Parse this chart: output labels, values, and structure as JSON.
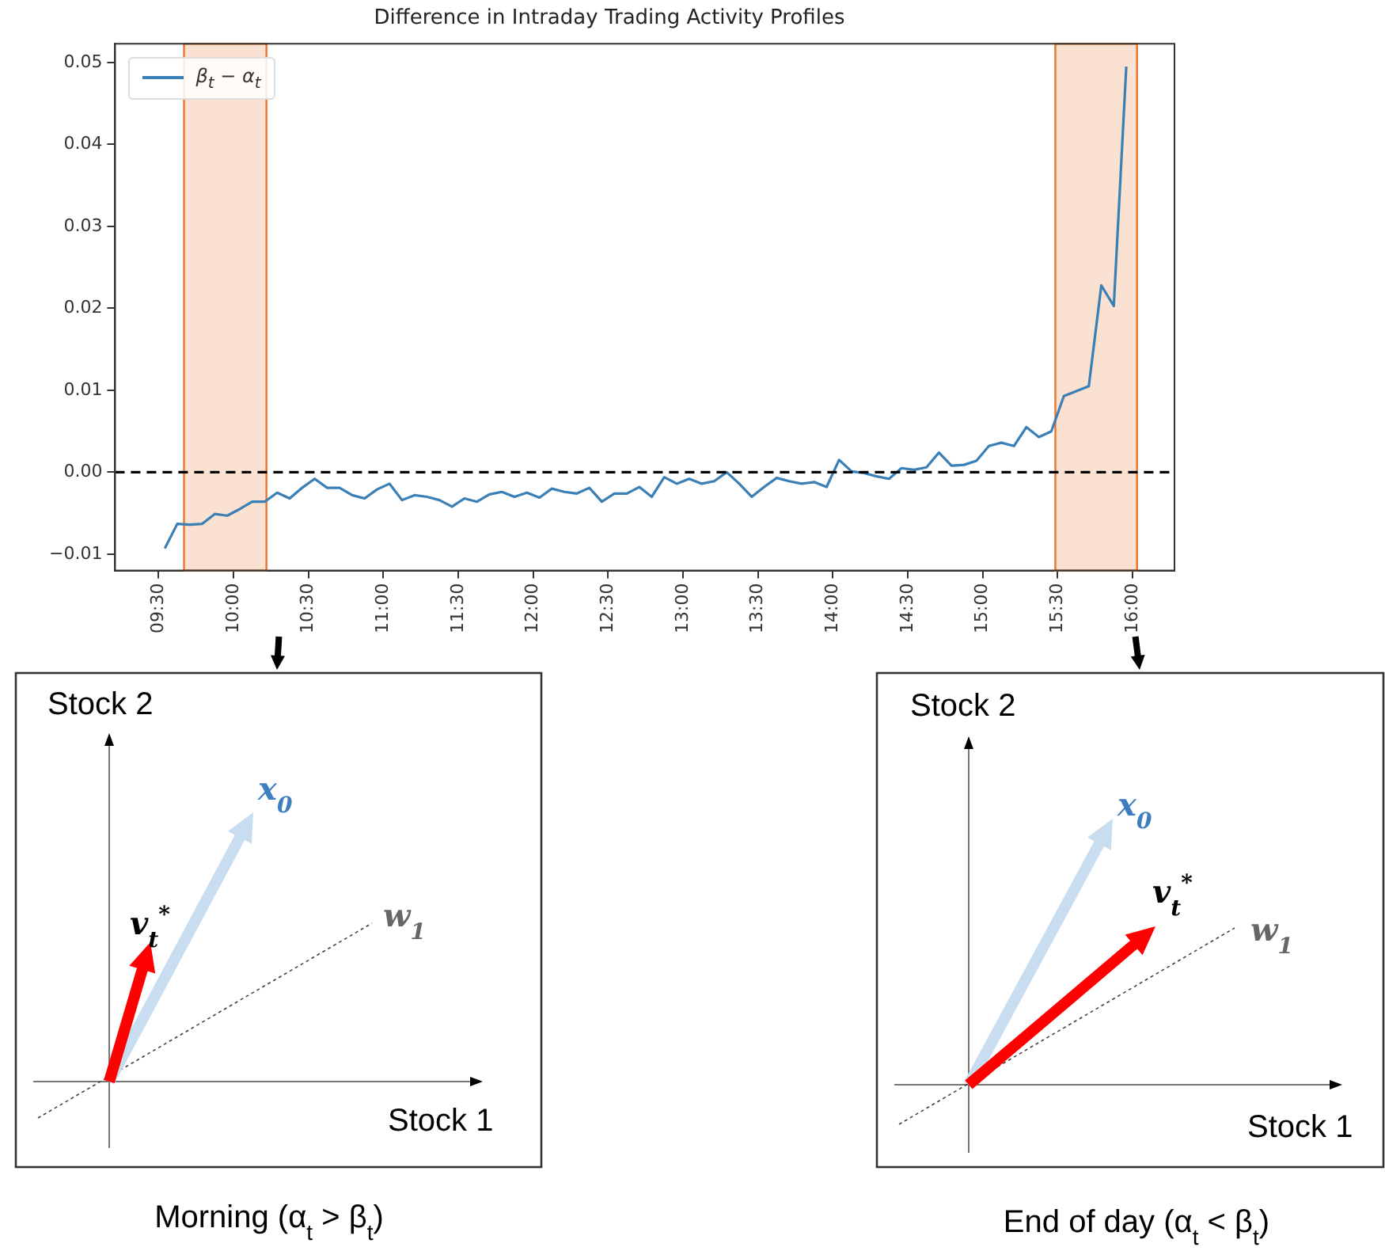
{
  "chart_data": {
    "type": "line",
    "title": "Difference in Intraday Trading Activity Profiles",
    "x": [
      9.5417,
      9.625,
      9.7083,
      9.7917,
      9.875,
      9.9583,
      10.0417,
      10.125,
      10.2083,
      10.2917,
      10.375,
      10.4583,
      10.5417,
      10.625,
      10.7083,
      10.7917,
      10.875,
      10.9583,
      11.0417,
      11.125,
      11.2083,
      11.2917,
      11.375,
      11.4583,
      11.5417,
      11.625,
      11.7083,
      11.7917,
      11.875,
      11.9583,
      12.0417,
      12.125,
      12.2083,
      12.2917,
      12.375,
      12.4583,
      12.5417,
      12.625,
      12.7083,
      12.7917,
      12.875,
      12.9583,
      13.0417,
      13.125,
      13.2083,
      13.2917,
      13.375,
      13.4583,
      13.5417,
      13.625,
      13.7083,
      13.7917,
      13.875,
      13.9583,
      14.0417,
      14.125,
      14.2083,
      14.2917,
      14.375,
      14.4583,
      14.5417,
      14.625,
      14.7083,
      14.7917,
      14.875,
      14.9583,
      15.0417,
      15.125,
      15.2083,
      15.2917,
      15.375,
      15.4583,
      15.5417,
      15.625,
      15.7083,
      15.7917,
      15.875,
      15.9583
    ],
    "series": [
      {
        "name": "β$_{t}$ − α$_{t}$",
        "color": "#3a7fb5",
        "values": [
          -0.0093,
          -0.0063,
          -0.0064,
          -0.0063,
          -0.0051,
          -0.0053,
          -0.0045,
          -0.0036,
          -0.0036,
          -0.0025,
          -0.0032,
          -0.0019,
          -0.0008,
          -0.0019,
          -0.0019,
          -0.0028,
          -0.0032,
          -0.0021,
          -0.0014,
          -0.0034,
          -0.0028,
          -0.003,
          -0.0034,
          -0.0042,
          -0.0032,
          -0.0036,
          -0.0027,
          -0.0024,
          -0.003,
          -0.0025,
          -0.0031,
          -0.002,
          -0.0024,
          -0.0026,
          -0.0019,
          -0.0036,
          -0.0026,
          -0.0026,
          -0.0018,
          -0.003,
          -0.0006,
          -0.0014,
          -0.0008,
          -0.0014,
          -0.0011,
          0.0,
          -0.0014,
          -0.003,
          -0.0018,
          -0.0007,
          -0.0011,
          -0.0014,
          -0.0012,
          -0.0018,
          0.0015,
          0.0001,
          -0.0001,
          -0.0005,
          -0.0008,
          0.0005,
          0.0003,
          0.0006,
          0.0024,
          0.0008,
          0.0009,
          0.0014,
          0.0032,
          0.0036,
          0.0032,
          0.0055,
          0.0043,
          0.005,
          0.0093,
          0.0099,
          0.0105,
          0.0228,
          0.0203,
          0.0495
        ]
      }
    ],
    "xlim": [
      9.21,
      16.28
    ],
    "xticks": [
      {
        "value": 9.5,
        "label": "09:30"
      },
      {
        "value": 10,
        "label": "10:00"
      },
      {
        "value": 10.5,
        "label": "10:30"
      },
      {
        "value": 11,
        "label": "11:00"
      },
      {
        "value": 11.5,
        "label": "11:30"
      },
      {
        "value": 12,
        "label": "12:00"
      },
      {
        "value": 12.5,
        "label": "12:30"
      },
      {
        "value": 13,
        "label": "13:00"
      },
      {
        "value": 13.5,
        "label": "13:30"
      },
      {
        "value": 14,
        "label": "14:00"
      },
      {
        "value": 14.5,
        "label": "14:30"
      },
      {
        "value": 15,
        "label": "15:00"
      },
      {
        "value": 15.5,
        "label": "15:30"
      },
      {
        "value": 16,
        "label": "16:00"
      }
    ],
    "ylim": [
      -0.012,
      0.0523
    ],
    "yticks": [
      {
        "value": -0.01,
        "label": "−0.01"
      },
      {
        "value": 0,
        "label": "0.00"
      },
      {
        "value": 0.01,
        "label": "0.01"
      },
      {
        "value": 0.02,
        "label": "0.02"
      },
      {
        "value": 0.03,
        "label": "0.03"
      },
      {
        "value": 0.04,
        "label": "0.04"
      },
      {
        "value": 0.05,
        "label": "0.05"
      }
    ],
    "ref_lines": [
      {
        "axis": "y",
        "value": 0,
        "color": "#000000",
        "line_style": "dashed"
      }
    ],
    "bands": [
      {
        "axis": "x",
        "from": 9.67,
        "to": 10.22,
        "color": "#e8762d"
      },
      {
        "axis": "x",
        "from": 15.485,
        "to": 16.03,
        "color": "#e8762d"
      }
    ],
    "legend": "top left",
    "marker": "none",
    "annotations": [
      "Stock 2",
      "x$_{0}$",
      "v$_{t}$$^{*}$",
      "w$_{1}$",
      "Stock 1",
      "Morning (α$_{t}$ > β$_{t}$)",
      "Stock 2",
      "x$_{0}$",
      "v$_{t}$$^{*}$",
      "w$_{1}$",
      "Stock 1",
      "End of day (α$_{t}$ < β$_{t}$)"
    ]
  }
}
